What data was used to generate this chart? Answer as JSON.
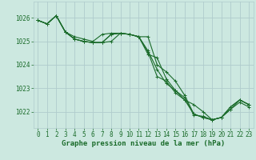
{
  "bg_color": "#cce8e0",
  "grid_color": "#b0cccc",
  "line_color": "#1a6b2a",
  "xlabel": "Graphe pression niveau de la mer (hPa)",
  "xlabel_fontsize": 6.5,
  "tick_fontsize": 5.5,
  "ytick_labels": [
    "1022",
    "1023",
    "1024",
    "1025",
    "1026"
  ],
  "yticks": [
    1022,
    1023,
    1024,
    1025,
    1026
  ],
  "xticks": [
    0,
    1,
    2,
    3,
    4,
    5,
    6,
    7,
    8,
    9,
    10,
    11,
    12,
    13,
    14,
    15,
    16,
    17,
    18,
    19,
    20,
    21,
    22,
    23
  ],
  "xlim": [
    -0.5,
    23.5
  ],
  "ylim": [
    1021.3,
    1026.7
  ],
  "series": [
    [
      1025.9,
      1025.75,
      1026.1,
      1025.4,
      1025.2,
      1025.1,
      1025.0,
      1025.3,
      1025.35,
      1025.35,
      1025.3,
      1025.2,
      1025.2,
      1024.0,
      1023.7,
      1023.3,
      1022.7,
      1021.9,
      1021.75,
      1021.65,
      1021.75,
      1022.2,
      1022.5,
      1022.3
    ],
    [
      1025.9,
      1025.75,
      1026.1,
      1025.4,
      1025.1,
      1025.0,
      1024.95,
      1024.95,
      1025.3,
      1025.35,
      1025.3,
      1025.2,
      1024.45,
      1024.3,
      1023.4,
      1022.9,
      1022.5,
      1022.3,
      1022.0,
      1021.65,
      1021.75,
      1022.2,
      1022.5,
      1022.3
    ],
    [
      1025.9,
      1025.75,
      1026.1,
      1025.4,
      1025.1,
      1025.0,
      1024.95,
      1024.95,
      1025.0,
      1025.35,
      1025.3,
      1025.2,
      1024.55,
      1023.5,
      1023.3,
      1022.8,
      1022.5,
      1021.9,
      1021.75,
      1021.65,
      1021.75,
      1022.1,
      1022.5,
      1022.3
    ],
    [
      1025.9,
      1025.75,
      1026.1,
      1025.4,
      1025.1,
      1025.0,
      1024.95,
      1024.95,
      1025.3,
      1025.35,
      1025.3,
      1025.2,
      1024.6,
      1023.8,
      1023.2,
      1022.9,
      1022.6,
      1021.85,
      1021.8,
      1021.65,
      1021.75,
      1022.1,
      1022.4,
      1022.2
    ]
  ]
}
